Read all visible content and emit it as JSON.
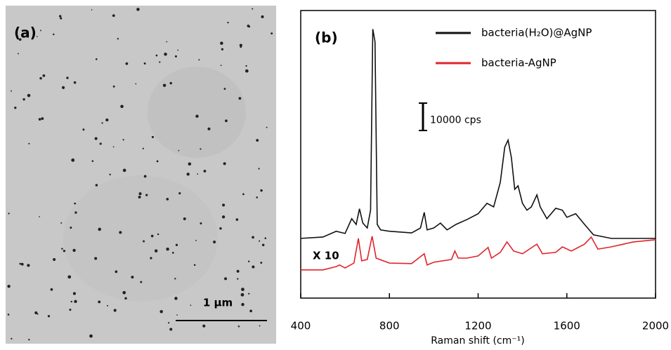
{
  "panel_a": {
    "label": "(a)",
    "scale_bar_label": "1 µm"
  },
  "chart_data": {
    "type": "line",
    "title": "(b)",
    "x_label": "Raman shift (cm⁻¹)",
    "annotation": "X 10",
    "scale_bar": {
      "value": 10000,
      "label": "10000 cps"
    },
    "xlim": [
      400,
      2000
    ],
    "xticks": [
      400,
      800,
      1200,
      1600,
      2000
    ],
    "ylim": [
      0,
      105000
    ],
    "legend": "upper right",
    "series": [
      {
        "name": "bacteria(H₂O)@AgNP",
        "color": "#111111",
        "x": [
          400,
          500,
          560,
          600,
          630,
          650,
          665,
          680,
          700,
          715,
          725,
          735,
          745,
          760,
          800,
          900,
          940,
          957,
          970,
          1000,
          1030,
          1060,
          1100,
          1150,
          1200,
          1240,
          1270,
          1300,
          1320,
          1335,
          1350,
          1365,
          1380,
          1400,
          1420,
          1440,
          1465,
          1480,
          1510,
          1550,
          1580,
          1600,
          1640,
          1680,
          1720,
          1800,
          2000
        ],
        "values": [
          21800,
          22300,
          24400,
          23600,
          29000,
          26900,
          32600,
          27400,
          25600,
          32100,
          98200,
          93600,
          26900,
          24900,
          24400,
          23800,
          25600,
          31300,
          24900,
          25600,
          27400,
          24900,
          26900,
          28700,
          30800,
          34600,
          33300,
          42300,
          55100,
          57700,
          51300,
          39700,
          41000,
          34600,
          32100,
          33300,
          37700,
          33300,
          29000,
          32800,
          32100,
          29500,
          30800,
          26900,
          23100,
          21800,
          21800
        ]
      },
      {
        "name": "bacteria-AgNP",
        "color": "#e0242b",
        "x": [
          400,
          500,
          560,
          575,
          600,
          640,
          660,
          675,
          700,
          722,
          740,
          800,
          900,
          957,
          970,
          1000,
          1080,
          1095,
          1110,
          1150,
          1200,
          1245,
          1260,
          1300,
          1330,
          1360,
          1400,
          1465,
          1490,
          1550,
          1580,
          1620,
          1680,
          1710,
          1740,
          1800,
          1900,
          2000
        ],
        "values": [
          10300,
          10300,
          11500,
          12100,
          11000,
          12800,
          21800,
          13600,
          14100,
          22600,
          14600,
          12800,
          12600,
          16200,
          12100,
          13100,
          14100,
          17200,
          14600,
          14600,
          15400,
          18500,
          14600,
          16700,
          20500,
          17200,
          16200,
          19700,
          16200,
          16700,
          18700,
          17200,
          19700,
          22300,
          17900,
          18700,
          20500,
          21300
        ]
      }
    ]
  }
}
